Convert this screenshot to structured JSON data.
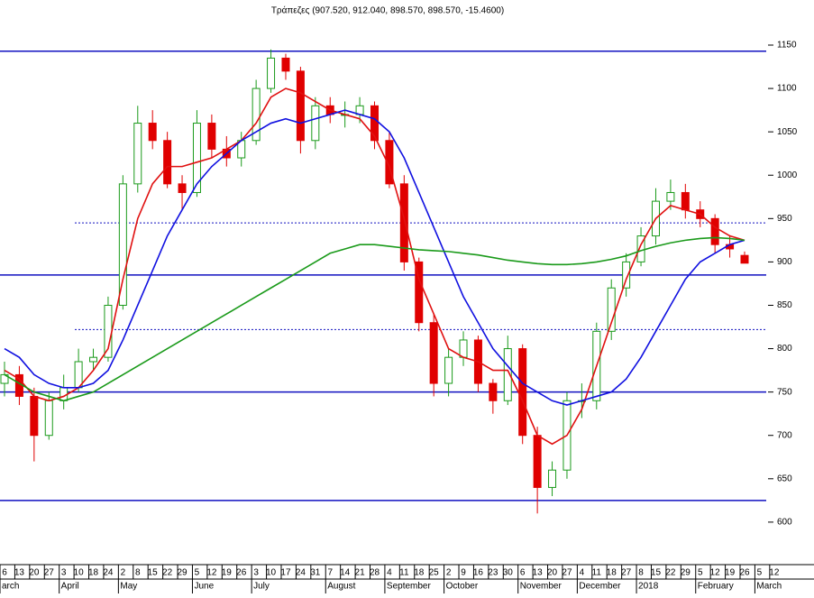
{
  "chart_data": {
    "type": "candlestick",
    "title": "Τράπεζες (907.520, 912.040, 898.570, 898.570, -15.4600)",
    "categories": [
      "6",
      "13",
      "20",
      "27",
      "3",
      "10",
      "18",
      "24",
      "2",
      "8",
      "15",
      "22",
      "29",
      "5",
      "12",
      "19",
      "26",
      "3",
      "10",
      "17",
      "24",
      "31",
      "7",
      "14",
      "21",
      "28",
      "4",
      "11",
      "18",
      "25",
      "2",
      "9",
      "16",
      "23",
      "30",
      "6",
      "13",
      "20",
      "27",
      "4",
      "11",
      "18",
      "27",
      "8",
      "15",
      "22",
      "29",
      "5",
      "12",
      "19",
      "26",
      "5",
      "12"
    ],
    "months": [
      "arch",
      null,
      null,
      null,
      "April",
      null,
      null,
      null,
      "May",
      null,
      null,
      null,
      null,
      "June",
      null,
      null,
      null,
      "July",
      null,
      null,
      null,
      null,
      "August",
      null,
      null,
      null,
      "September",
      null,
      null,
      null,
      "October",
      null,
      null,
      null,
      null,
      "November",
      null,
      null,
      null,
      "December",
      null,
      null,
      null,
      "2018",
      null,
      null,
      null,
      "February",
      null,
      null,
      null,
      "March",
      null
    ],
    "open": [
      760,
      770,
      745,
      700,
      740,
      755,
      785,
      790,
      850,
      990,
      1060,
      1040,
      990,
      980,
      1060,
      1030,
      1020,
      1040,
      1100,
      1135,
      1120,
      1040,
      1080,
      1070,
      1070,
      1080,
      1040,
      990,
      900,
      830,
      760,
      790,
      810,
      760,
      740,
      800,
      700,
      640,
      660,
      740,
      740,
      820,
      870,
      900,
      930,
      970,
      980,
      960,
      950,
      920,
      907.52,
      null,
      null
    ],
    "high": [
      785,
      780,
      755,
      750,
      770,
      800,
      800,
      860,
      1000,
      1080,
      1075,
      1050,
      1000,
      1075,
      1070,
      1045,
      1050,
      1110,
      1145,
      1140,
      1125,
      1090,
      1090,
      1085,
      1090,
      1085,
      1050,
      1000,
      905,
      840,
      800,
      820,
      815,
      765,
      815,
      805,
      710,
      670,
      750,
      760,
      830,
      880,
      910,
      940,
      985,
      995,
      990,
      970,
      955,
      930,
      912.04,
      null,
      null
    ],
    "low": [
      745,
      735,
      670,
      695,
      730,
      750,
      775,
      785,
      845,
      980,
      1030,
      985,
      960,
      975,
      1020,
      1010,
      1010,
      1035,
      1095,
      1110,
      1025,
      1030,
      1060,
      1055,
      1060,
      1030,
      985,
      890,
      820,
      745,
      745,
      780,
      750,
      725,
      735,
      690,
      610,
      630,
      650,
      720,
      730,
      810,
      860,
      895,
      920,
      960,
      950,
      940,
      910,
      905,
      898.57,
      null,
      null
    ],
    "close": [
      770,
      745,
      700,
      740,
      755,
      785,
      790,
      850,
      990,
      1060,
      1040,
      990,
      980,
      1060,
      1030,
      1020,
      1040,
      1100,
      1135,
      1120,
      1040,
      1080,
      1070,
      1070,
      1080,
      1040,
      990,
      900,
      830,
      760,
      790,
      810,
      760,
      740,
      800,
      700,
      640,
      660,
      740,
      740,
      820,
      870,
      900,
      930,
      970,
      980,
      960,
      950,
      920,
      915,
      898.57,
      null,
      null
    ],
    "up_color": "#1a9a1a",
    "down_color": "#e00000",
    "series": [
      {
        "color": "#e01010",
        "values": [
          775,
          765,
          745,
          740,
          745,
          755,
          775,
          800,
          880,
          950,
          990,
          1010,
          1010,
          1015,
          1020,
          1030,
          1040,
          1060,
          1090,
          1100,
          1095,
          1085,
          1075,
          1070,
          1065,
          1045,
          1010,
          950,
          880,
          840,
          800,
          790,
          785,
          775,
          775,
          740,
          700,
          690,
          700,
          730,
          780,
          830,
          880,
          920,
          950,
          965,
          960,
          955,
          940,
          930,
          925,
          null,
          null
        ]
      },
      {
        "color": "#1010e0",
        "values": [
          800,
          790,
          770,
          760,
          755,
          755,
          760,
          775,
          810,
          850,
          890,
          930,
          960,
          990,
          1010,
          1025,
          1040,
          1050,
          1060,
          1065,
          1060,
          1065,
          1070,
          1075,
          1070,
          1065,
          1050,
          1020,
          980,
          940,
          900,
          860,
          830,
          800,
          780,
          760,
          750,
          740,
          735,
          740,
          745,
          750,
          765,
          790,
          820,
          850,
          880,
          900,
          910,
          920,
          925,
          null,
          null
        ]
      },
      {
        "color": "#1a9a1a",
        "values": [
          770,
          760,
          750,
          745,
          740,
          745,
          750,
          760,
          770,
          780,
          790,
          800,
          810,
          820,
          830,
          840,
          850,
          860,
          870,
          880,
          890,
          900,
          910,
          915,
          920,
          920,
          918,
          916,
          914,
          913,
          912,
          910,
          908,
          905,
          902,
          900,
          898,
          897,
          897,
          898,
          900,
          903,
          907,
          913,
          918,
          922,
          925,
          927,
          928,
          927,
          925,
          null,
          null
        ]
      }
    ],
    "levels": [
      {
        "value": 1143,
        "style": "solid"
      },
      {
        "value": 945,
        "style": "dotted"
      },
      {
        "value": 885,
        "style": "solid"
      },
      {
        "value": 822,
        "style": "dotted"
      },
      {
        "value": 750,
        "style": "solid"
      },
      {
        "value": 625,
        "style": "solid"
      }
    ],
    "level_color": "#1010c0",
    "ylim": [
      551,
      1202
    ],
    "yticks": [
      600,
      650,
      700,
      750,
      800,
      850,
      900,
      950,
      1000,
      1050,
      1100,
      1150
    ]
  }
}
